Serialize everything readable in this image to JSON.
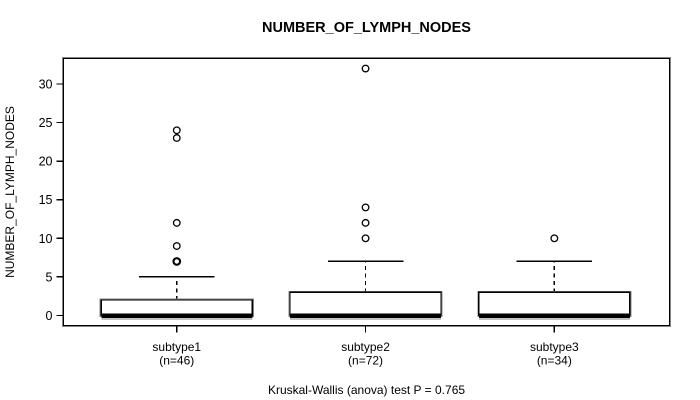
{
  "page": {
    "background": "#ffffff"
  },
  "chart_data": {
    "type": "boxplot",
    "title": "NUMBER_OF_LYMPH_NODES",
    "ylabel": "NUMBER_OF_LYMPH_NODES",
    "xlabel": "",
    "caption": "Kruskal-Wallis (anova) test P = 0.765",
    "ylim": [
      -1.3,
      33.3
    ],
    "xlim": [
      0.4,
      3.61
    ],
    "yticks": [
      0,
      5,
      10,
      15,
      20,
      25,
      30
    ],
    "grid": false,
    "box_width_units": 0.8,
    "cap_width_units": 0.4,
    "groups": [
      {
        "label": "subtype1",
        "sublabel": "(n=46)",
        "n": 46,
        "position": 1,
        "q1": 0,
        "median": 0,
        "q3": 2,
        "whisker_low": 0,
        "whisker_high": 5,
        "outliers": [
          7,
          7,
          9,
          12,
          23,
          24
        ]
      },
      {
        "label": "subtype2",
        "sublabel": "(n=72)",
        "n": 72,
        "position": 2,
        "q1": 0,
        "median": 0,
        "q3": 3,
        "whisker_low": 0,
        "whisker_high": 7,
        "outliers": [
          10,
          12,
          14,
          32
        ]
      },
      {
        "label": "subtype3",
        "sublabel": "(n=34)",
        "n": 34,
        "position": 3,
        "q1": 0,
        "median": 0,
        "q3": 3,
        "whisker_low": 0,
        "whisker_high": 7,
        "outliers": [
          10
        ]
      }
    ],
    "colors": {
      "line": "#000000",
      "halo": "#848484",
      "box_fill": "#ffffff",
      "background": "#ffffff",
      "text": "#000000"
    }
  }
}
